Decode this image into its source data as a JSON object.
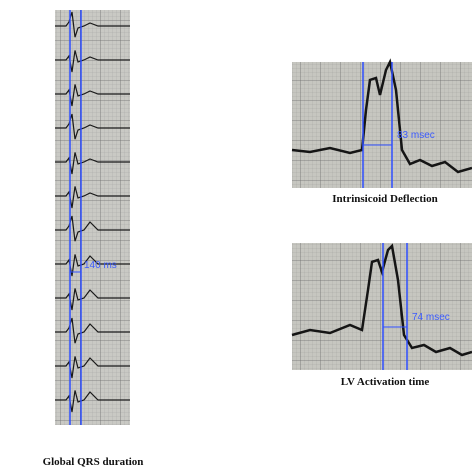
{
  "panels": [
    {
      "caption": "Global QRS duration",
      "measurement": "140 ms"
    },
    {
      "caption": "Intrinsicoid Deflection",
      "measurement": "83 msec"
    },
    {
      "caption": "LV Activation time",
      "measurement": "74 msec"
    }
  ]
}
